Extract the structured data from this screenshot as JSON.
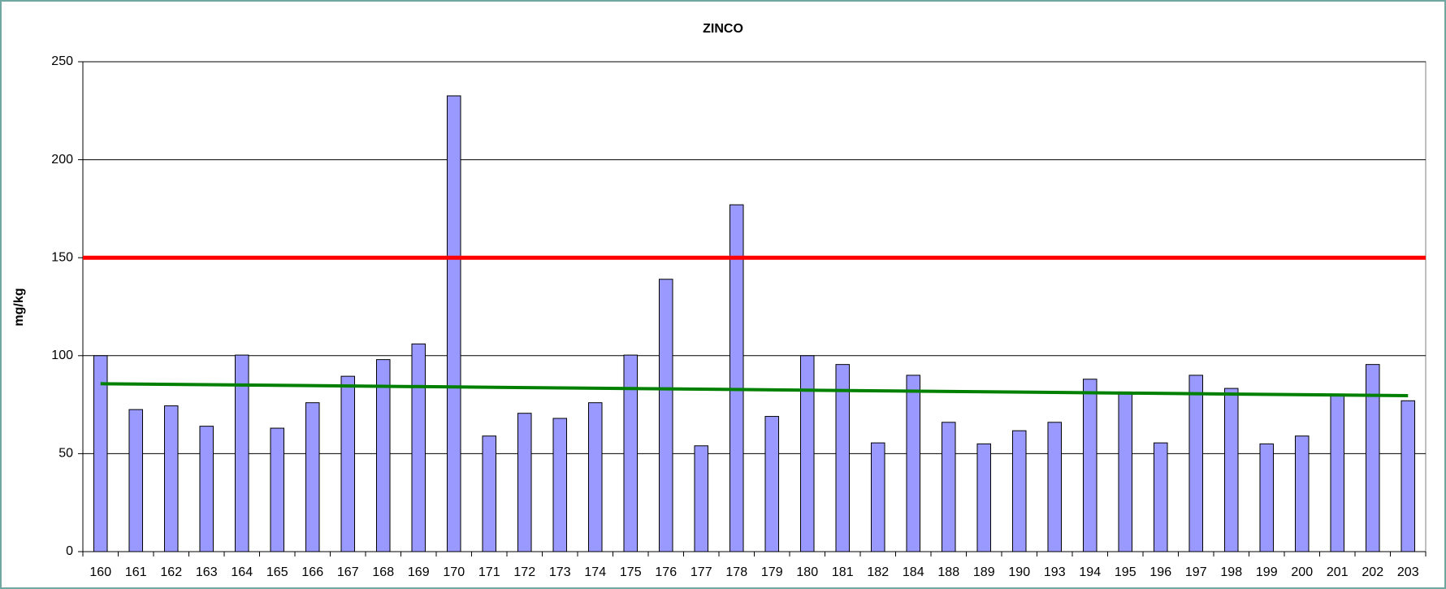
{
  "chart_data": {
    "type": "bar",
    "title": "ZINCO",
    "y_label": "mg/kg",
    "categories": [
      "160",
      "161",
      "162",
      "163",
      "164",
      "165",
      "166",
      "167",
      "168",
      "169",
      "170",
      "171",
      "172",
      "173",
      "174",
      "175",
      "176",
      "177",
      "178",
      "179",
      "180",
      "181",
      "182",
      "184",
      "188",
      "189",
      "190",
      "193",
      "194",
      "195",
      "196",
      "197",
      "198",
      "199",
      "200",
      "201",
      "202",
      "203"
    ],
    "values": [
      100,
      72.5,
      74.4,
      64,
      100.3,
      63,
      76,
      89.5,
      98,
      106,
      232.6,
      59,
      70.6,
      68,
      76,
      100.3,
      139,
      54,
      177,
      69,
      100,
      95.5,
      55.5,
      90,
      66,
      55,
      61.7,
      66,
      88,
      81.5,
      55.5,
      90,
      83.3,
      55,
      59,
      80,
      95.5,
      77
    ],
    "color": "#9999ff",
    "ylim": [
      0,
      250
    ],
    "yticks": [
      0,
      50,
      100,
      150,
      200,
      250
    ],
    "grid": true,
    "reference_line": {
      "value": 150,
      "color": "#ff0000"
    },
    "trend": {
      "values": [
        85.7,
        79.6
      ],
      "color": "#008000"
    }
  }
}
